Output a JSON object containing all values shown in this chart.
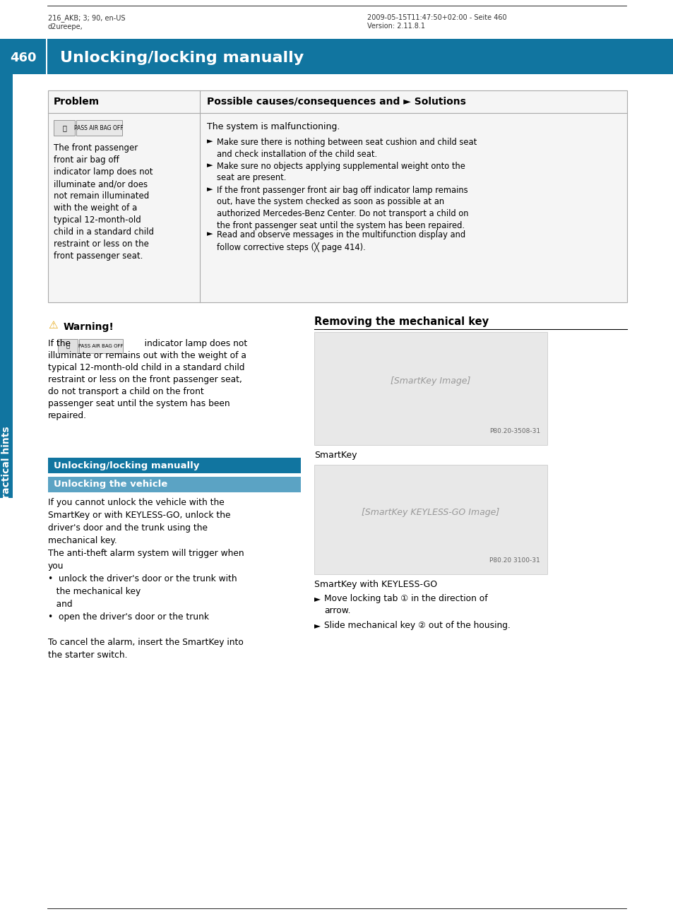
{
  "page_bg": "#ffffff",
  "header_top_text_left": "216_AKB; 3; 90, en-US\nd2ureepe,",
  "header_top_text_right": "2009-05-15T11:47:50+02:00 - Seite 460\nVersion: 2.11.8.1",
  "header_bar_color": "#1175a0",
  "header_page_num": "460",
  "header_title": "Unlocking/locking manually",
  "table_header_bg": "#d9d9d9",
  "table_body_bg": "#f0f0f0",
  "table_border_color": "#aaaaaa",
  "col1_header": "Problem",
  "col2_header": "Possible causes/consequences and ► Solutions",
  "col1_body": "The front passenger\nfront air bag off\nindicator lamp does not\nilluminate and/or does\nnot remain illuminated\nwith the weight of a\ntypical 12-month-old\nchild in a standard child\nrestraint or less on the\nfront passenger seat.",
  "col2_body_line0": "The system is malfunctioning.",
  "col2_bullets": [
    "Make sure there is nothing between seat cushion and child seat\nand check installation of the child seat.",
    "Make sure no objects applying supplemental weight onto the\nseat are present.",
    "If the front passenger front air bag off indicator lamp remains\nout, have the system checked as soon as possible at an\nauthorized Mercedes-Benz Center. Do not transport a child on\nthe front passenger seat until the system has been repaired.",
    "Read and observe messages in the multifunction display and\nfollow corrective steps (╳ page 414)."
  ],
  "warning_title": "Warning!",
  "warning_text": "If the                    indicator lamp does not\nilluminate or remains out with the weight of a\ntypical 12-month-old child in a standard child\nrestraint or less on the front passenger seat,\ndo not transport a child on the front\npassenger seat until the system has been\nrepaired.",
  "section_bar1_color": "#1175a0",
  "section_bar1_text": "Unlocking/locking manually",
  "section_bar2_color": "#5ba3c4",
  "section_bar2_text": "Unlocking the vehicle",
  "body_text_left": "If you cannot unlock the vehicle with the\nSmartKey or with KEYLESS-GO, unlock the\ndriver's door and the trunk using the\nmechanical key.\nThe anti-theft alarm system will trigger when\nyou\n•  unlock the driver's door or the trunk with\n   the mechanical key\n   and\n•  open the driver's door or the trunk\n\nTo cancel the alarm, insert the SmartKey into\nthe starter switch.",
  "right_section_title": "Removing the mechanical key",
  "smartkey_label": "SmartKey",
  "smartkey_keyless_label": "SmartKey with KEYLESS-GO",
  "right_bullets": [
    "Move locking tab ① in the direction of\narrow.",
    "Slide mechanical key ② out of the housing."
  ],
  "sidebar_text": "Practical hints",
  "sidebar_color": "#1175a0",
  "text_color": "#000000",
  "small_text_color": "#555555"
}
